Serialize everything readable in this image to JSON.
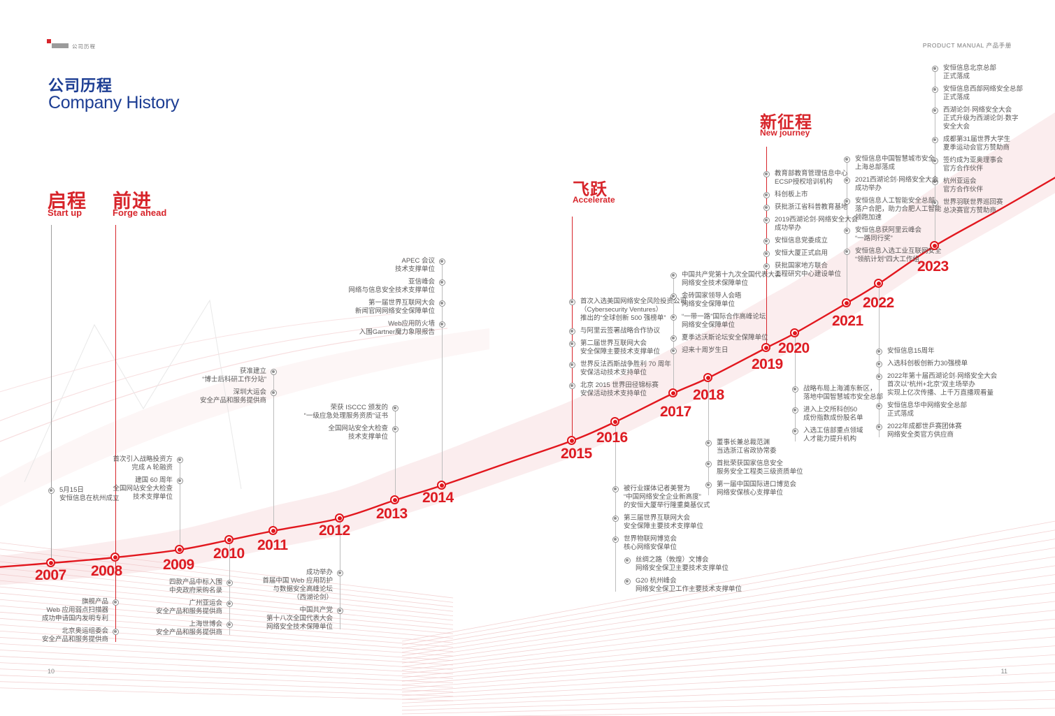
{
  "page": {
    "header_tab": "公司历程",
    "header_right": "PRODUCT MANUAL  产品手册",
    "title_zh": "公司历程",
    "title_en": "Company History",
    "page_left": "10",
    "page_right": "11",
    "accent_red": "#d7252b",
    "title_blue": "#1c3d93"
  },
  "phases": [
    {
      "id": "start",
      "zh": "启程",
      "en": "Start up"
    },
    {
      "id": "forge",
      "zh": "前进",
      "en": "Forge ahead"
    },
    {
      "id": "accelerate",
      "zh": "飞跃",
      "en": "Accelerate"
    },
    {
      "id": "journey",
      "zh": "新征程",
      "en": "New journey"
    }
  ],
  "timeline": [
    {
      "year": "2007",
      "items": [
        [
          "5月15日",
          "安恒信息在杭州成立"
        ]
      ]
    },
    {
      "year": "2008",
      "items": [
        [
          "旗舰产品",
          "Web 应用弱点扫描器",
          "成功申请国内发明专利"
        ],
        [
          "北京奥运组委会",
          "安全产品和服务提供商"
        ]
      ]
    },
    {
      "year": "2009",
      "items": [
        [
          "首次引入战略投资方",
          "完成 A 轮融资"
        ],
        [
          "建国 60 周年",
          "全国网站安全大检查",
          "技术支撑单位"
        ]
      ]
    },
    {
      "year": "2010",
      "items": [
        [
          "四款产品中标入围",
          "中央政府采购名录"
        ],
        [
          "广州亚运会",
          "安全产品和服务提供商"
        ],
        [
          "上海世博会",
          "安全产品和服务提供商"
        ]
      ]
    },
    {
      "year": "2011",
      "items": [
        [
          "获准建立",
          "“博士后科研工作分站”"
        ],
        [
          "深圳大运会",
          "安全产品和服务提供商"
        ]
      ]
    },
    {
      "year": "2012",
      "items": [
        [
          "成功举办",
          "首届中国 Web 应用防护",
          "与数据安全高峰论坛",
          "（西湖论剑）"
        ],
        [
          "中国共产党",
          "第十八次全国代表大会",
          "网络安全技术保障单位"
        ]
      ]
    },
    {
      "year": "2013",
      "items": [
        [
          "荣获 ISCCC 颁发的",
          "“一级应急处理服务资质”证书"
        ],
        [
          "全国网站安全大检查",
          "技术支撑单位"
        ]
      ]
    },
    {
      "year": "2014",
      "items": [
        [
          "APEC 会议",
          "技术支撑单位"
        ],
        [
          "亚信峰会",
          "网络与信息安全技术支撑单位"
        ],
        [
          "第一届世界互联网大会",
          "新闻官网网络安全保障单位"
        ],
        [
          "Web应用防火墙",
          "入围Gartner魔力象限报告"
        ]
      ]
    },
    {
      "year": "2015",
      "items": [
        [
          "首次入选美国网络安全风险投资公司",
          "（Cybersecurity Ventures）",
          "推出的“全球创新 500 强榜单”"
        ],
        [
          "与阿里云签署战略合作协议"
        ],
        [
          "第二届世界互联网大会",
          "安全保障主要技术支撑单位"
        ],
        [
          "世界反法西斯战争胜利 70 周年",
          "安保活动技术支持单位"
        ],
        [
          "北京 2015 世界田径锦标赛",
          "安保活动技术支持单位"
        ]
      ]
    },
    {
      "year": "2016",
      "items": [
        [
          "被行业媒体记者美誉为",
          "“中国网络安全企业新高度”",
          "的安恒大厦举行隆重奠基仪式"
        ],
        [
          "第三届世界互联网大会",
          "安全保障主要技术支撑单位"
        ],
        [
          "世界物联网博览会",
          "核心网络安保单位"
        ],
        [
          "丝绸之路（敦煌）文博会",
          "网络安全保卫主要技术支撑单位"
        ],
        [
          "G20 杭州峰会",
          "网络安全保卫工作主要技术支撑单位"
        ]
      ]
    },
    {
      "year": "2017",
      "items": [
        [
          "中国共产党第十九次全国代表大会",
          "网络安全技术保障单位"
        ],
        [
          "金砖国家领导人会晤",
          "网络安全保障单位"
        ],
        [
          "“一带一路”国际合作高峰论坛",
          "网络安全保障单位"
        ],
        [
          "夏季达沃斯论坛安全保障单位"
        ],
        [
          "迎来十周岁生日"
        ]
      ]
    },
    {
      "year": "2018",
      "items": [
        [
          "董事长兼总裁范渊",
          "当选浙江省政协常委"
        ],
        [
          "首批荣获国家信息安全",
          "服务安全工程类三级资质单位"
        ],
        [
          "第一届中国国际进口博览会",
          "网络安保核心支撑单位"
        ]
      ]
    },
    {
      "year": "2019",
      "items": [
        [
          "教育部教育管理信息中心",
          "ECSP授权培训机构"
        ],
        [
          "科创板上市"
        ],
        [
          "获批浙江省科普教育基地"
        ],
        [
          "2019西湖论剑·网络安全大会",
          "成功举办"
        ],
        [
          "安恒信息党委成立"
        ],
        [
          "安恒大厦正式启用"
        ],
        [
          "获批国家地方联合",
          "工程研究中心建设单位"
        ]
      ]
    },
    {
      "year": "2020",
      "items": [
        [
          "战略布局上海浦东新区，",
          "落地中国智慧城市安全总部"
        ],
        [
          "进入上交所科创50",
          "成份指数成份股名单"
        ],
        [
          "入选工信部重点领域",
          "人才能力提升机构"
        ]
      ]
    },
    {
      "year": "2021",
      "items": [
        [
          "安恒信息中国智慧城市安全",
          "上海总部落成"
        ],
        [
          "2021西湖论剑·网络安全大会",
          "成功举办"
        ],
        [
          "安恒信息人工智能安全总部",
          "落户合肥，助力合肥人工智能",
          "领跑加速"
        ],
        [
          "安恒信息获阿里云峰会",
          "“一路同行奖”"
        ],
        [
          "安恒信息入选工业互联网安全",
          "“领航计划”四大工作组"
        ]
      ]
    },
    {
      "year": "2022",
      "items": [
        [
          "安恒信息15周年"
        ],
        [
          "入选科创板创新力30强榜单"
        ],
        [
          "2022年第十届西湖论剑·网络安全大会",
          "首次以“杭州+北京”双主场举办",
          "实现上亿次传播、上千万直播观看量"
        ],
        [
          "安恒信息华中网络安全总部",
          "正式落成"
        ],
        [
          "2022年成都世乒赛团体赛",
          "网络安全类官方供应商"
        ]
      ]
    },
    {
      "year": "2023",
      "items": [
        [
          "安恒信息北京总部",
          "正式落成"
        ],
        [
          "安恒信息西部网络安全总部",
          "正式落成"
        ],
        [
          "西湖论剑·网络安全大会",
          "正式升级为西湖论剑·数字",
          "安全大会"
        ],
        [
          "成都第31届世界大学生",
          "夏季运动会官方赞助商"
        ],
        [
          "签约成为亚奥理事会",
          "官方合作伙伴"
        ],
        [
          "杭州亚运会",
          "官方合作伙伴"
        ],
        [
          "世界羽联世界巡回赛",
          "总决赛官方赞助商"
        ]
      ]
    }
  ]
}
